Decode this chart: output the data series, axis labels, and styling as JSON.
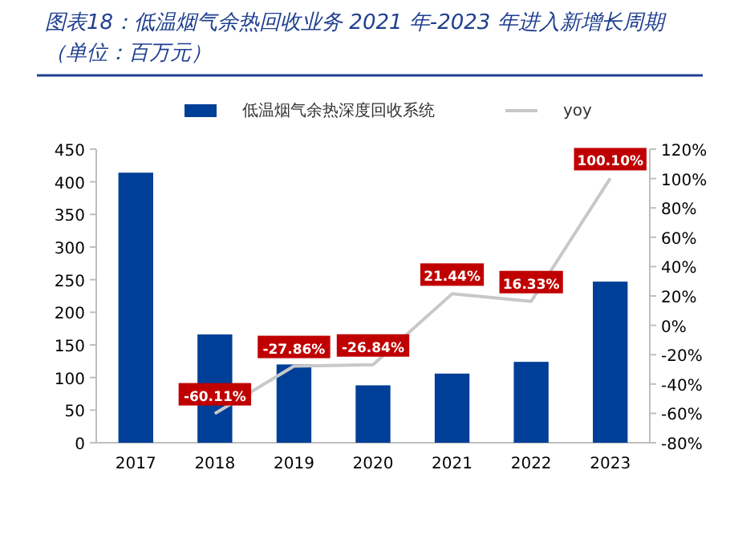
{
  "chart_data": {
    "type": "bar",
    "title": "图表18：低温烟气余热回收业务 2021 年-2023 年进入新增长周期（单位：百万元）",
    "categories": [
      "2017",
      "2018",
      "2019",
      "2020",
      "2021",
      "2022",
      "2023"
    ],
    "series": [
      {
        "name": "低温烟气余热深度回收系统",
        "color": "#003f98",
        "values": [
          414,
          166,
          120,
          88,
          106,
          124,
          247
        ]
      },
      {
        "name": "yoy",
        "type": "line",
        "axis": "y2",
        "color": "#c8c8c8",
        "values": [
          null,
          -60.11,
          -27.86,
          -26.84,
          21.44,
          16.33,
          100.1
        ],
        "value_labels": [
          null,
          "-60.11%",
          "-27.86%",
          "-26.84%",
          "21.44%",
          "16.33%",
          "100.10%"
        ]
      }
    ],
    "ylim": [
      0,
      450
    ],
    "yticks": [
      0,
      50,
      100,
      150,
      200,
      250,
      300,
      350,
      400,
      450
    ],
    "y2lim": [
      -80,
      120
    ],
    "y2ticks": [
      {
        "value": -80,
        "label": "-80%"
      },
      {
        "value": -60,
        "label": "-60%"
      },
      {
        "value": -40,
        "label": "-40%"
      },
      {
        "value": -20,
        "label": "-20%"
      },
      {
        "value": 0,
        "label": "0%"
      },
      {
        "value": 20,
        "label": "20%"
      },
      {
        "value": 40,
        "label": "40%"
      },
      {
        "value": 60,
        "label": "60%"
      },
      {
        "value": 80,
        "label": "80%"
      },
      {
        "value": 100,
        "label": "100%"
      },
      {
        "value": 120,
        "label": "120%"
      }
    ],
    "legend": "top",
    "grid": false
  }
}
